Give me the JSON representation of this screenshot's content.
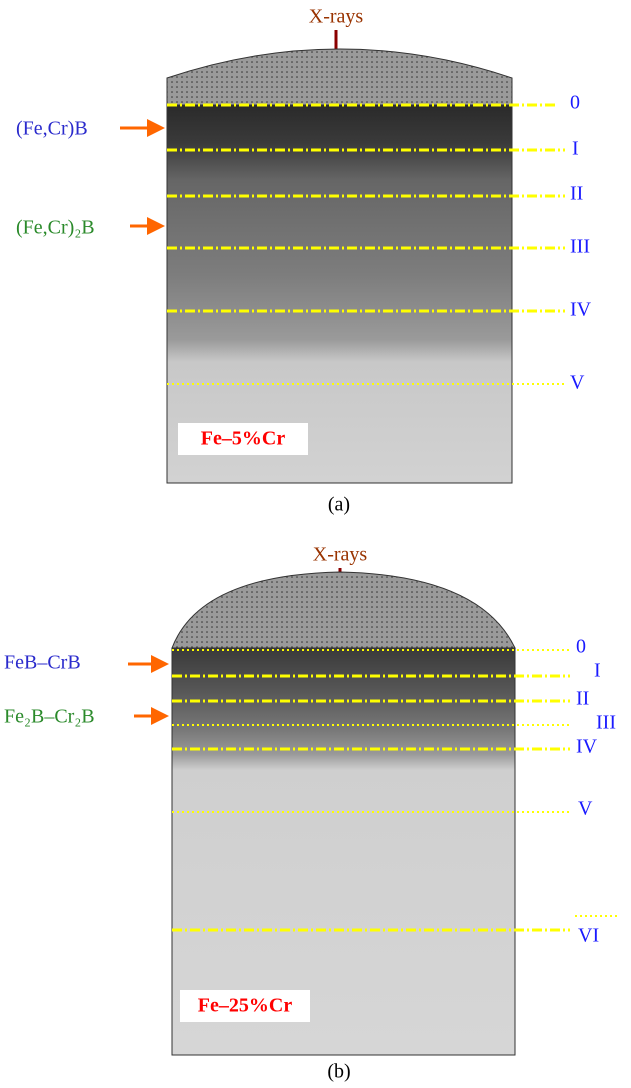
{
  "panels": [
    {
      "caption": "(a)",
      "beam": "X-rays",
      "sample": "Fe–5%Cr",
      "phases": [
        "(Fe,Cr)B",
        "(Fe,Cr)₂B"
      ],
      "depth_labels": [
        "0",
        "I",
        "II",
        "III",
        "IV",
        "V"
      ]
    },
    {
      "caption": "(b)",
      "beam": "X-rays",
      "sample": "Fe–25%Cr",
      "phases": [
        "FeB–CrB",
        "Fe₂B–Cr₂B"
      ],
      "depth_labels": [
        "0",
        "I",
        "II",
        "III",
        "IV",
        "V",
        "VI"
      ]
    }
  ]
}
